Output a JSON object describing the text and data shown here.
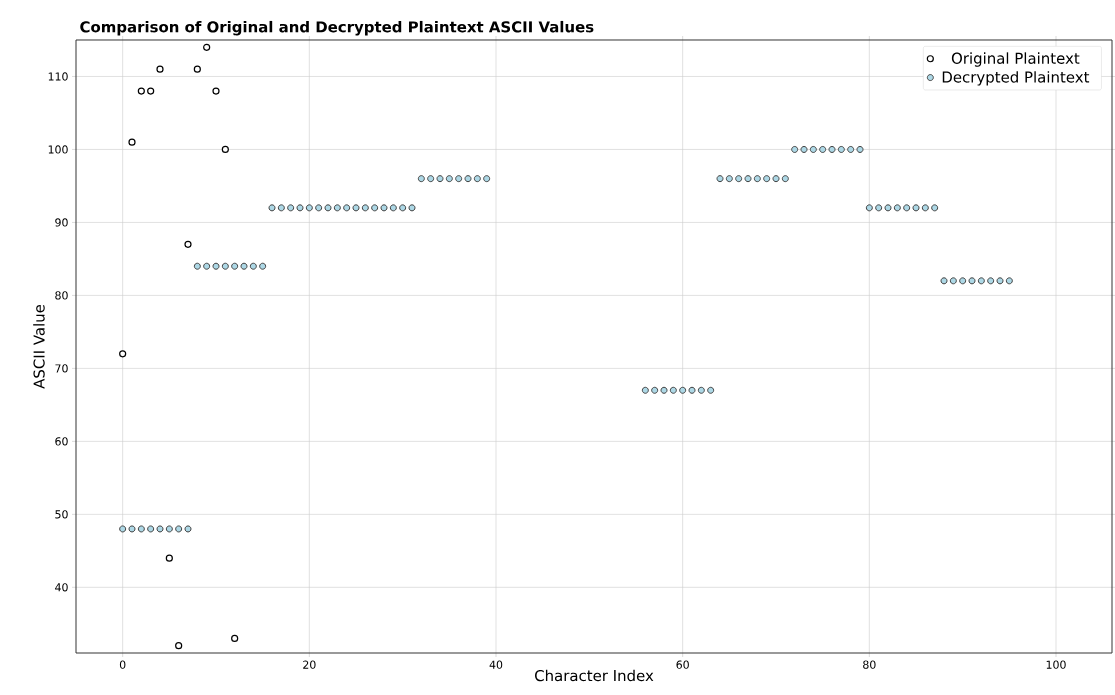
{
  "chart_data": {
    "type": "scatter",
    "title": "Comparison of Original and Decrypted Plaintext ASCII Values",
    "xlabel": "Character Index",
    "ylabel": "ASCII Value",
    "series": [
      {
        "name": "Original Plaintext",
        "color": "#000000",
        "x": [
          0,
          1,
          2,
          3,
          4,
          5,
          6,
          7,
          8,
          9,
          10,
          11,
          12
        ],
        "values": [
          72,
          101,
          108,
          108,
          111,
          44,
          32,
          87,
          111,
          114,
          108,
          100,
          33
        ]
      },
      {
        "name": "Decrypted Plaintext",
        "color": "#add8e6",
        "x": [
          0,
          1,
          2,
          3,
          4,
          5,
          6,
          7,
          8,
          9,
          10,
          11,
          12,
          13,
          14,
          15,
          16,
          17,
          18,
          19,
          20,
          21,
          22,
          23,
          24,
          25,
          26,
          27,
          28,
          29,
          30,
          31,
          32,
          33,
          34,
          35,
          36,
          37,
          38,
          39,
          56,
          57,
          58,
          59,
          60,
          61,
          62,
          63,
          64,
          65,
          66,
          67,
          68,
          69,
          70,
          71,
          72,
          73,
          74,
          75,
          76,
          77,
          78,
          79,
          80,
          81,
          82,
          83,
          84,
          85,
          86,
          87,
          88,
          89,
          90,
          91,
          92,
          93,
          94,
          95
        ],
        "values": [
          48,
          48,
          48,
          48,
          48,
          48,
          48,
          48,
          84,
          84,
          84,
          84,
          84,
          84,
          84,
          84,
          92,
          92,
          92,
          92,
          92,
          92,
          92,
          92,
          92,
          92,
          92,
          92,
          92,
          92,
          92,
          92,
          96,
          96,
          96,
          96,
          96,
          96,
          96,
          96,
          67,
          67,
          67,
          67,
          67,
          67,
          67,
          67,
          96,
          96,
          96,
          96,
          96,
          96,
          96,
          96,
          100,
          100,
          100,
          100,
          100,
          100,
          100,
          100,
          92,
          92,
          92,
          92,
          92,
          92,
          92,
          92,
          82,
          82,
          82,
          82,
          82,
          82,
          82,
          82
        ]
      }
    ],
    "xlim": [
      -5,
      106
    ],
    "ylim": [
      31,
      115
    ],
    "xticks": [
      0,
      20,
      40,
      60,
      80,
      100
    ],
    "yticks": [
      40,
      50,
      60,
      70,
      80,
      90,
      100,
      110
    ],
    "grid": true,
    "legend": "top right",
    "marker": "circle"
  }
}
